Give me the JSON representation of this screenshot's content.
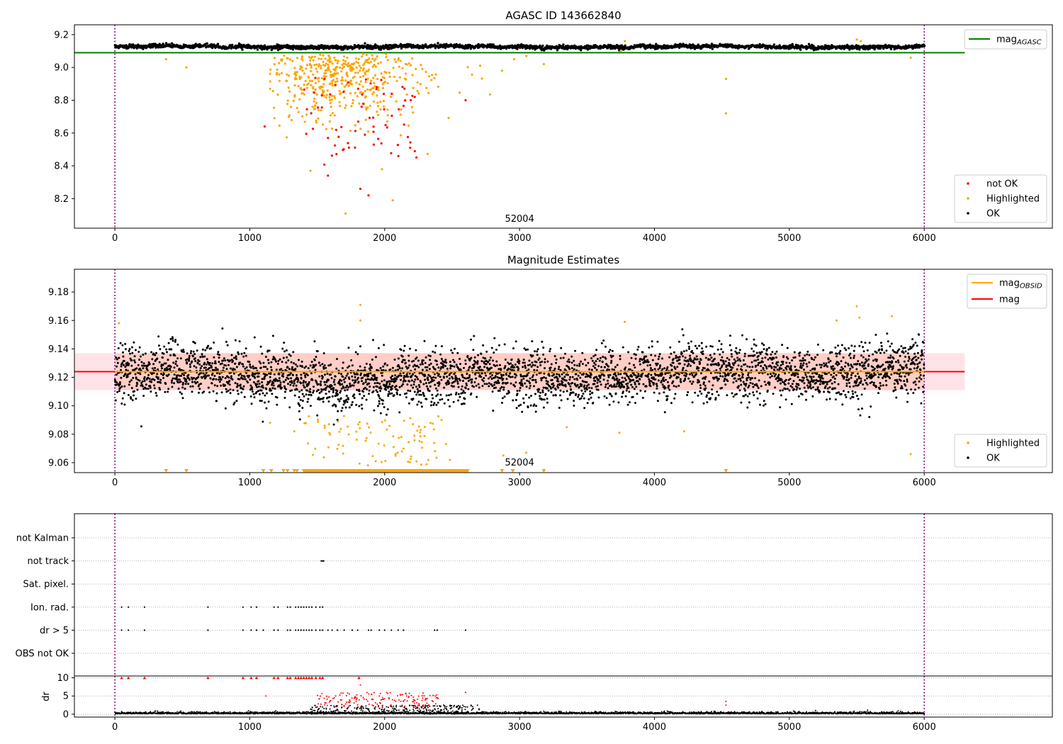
{
  "figure": {
    "width": 1500,
    "height": 1050
  },
  "colors": {
    "ok": "#000000",
    "highlighted": "#ffa500",
    "not_ok": "#ff0000",
    "mag_agasc": "#008000",
    "mag": "#ff0000",
    "mag_obsid": "#ffa500",
    "band_red": "#ffc0cb",
    "band_orange": "#ffa07a",
    "obsid_line": "#800080",
    "grid": "#b0b0b0"
  },
  "chart_data": [
    {
      "type": "scatter",
      "title": "AGASC ID 143662840",
      "xlim": [
        -300,
        6950
      ],
      "ylim": [
        8.02,
        9.26
      ],
      "xticks": [
        0,
        1000,
        2000,
        3000,
        4000,
        5000,
        6000
      ],
      "yticks": [
        8.2,
        8.4,
        8.6,
        8.8,
        9.0,
        9.2
      ],
      "ytick_labels": [
        "8.2",
        "8.4",
        "8.6",
        "8.8",
        "9.0",
        "9.2"
      ],
      "obsid_lines": [
        0,
        6000
      ],
      "obsid_label": {
        "text": "52004",
        "x": 3000
      },
      "mag_agasc": {
        "value": 9.09,
        "xrange": [
          -300,
          6300
        ]
      },
      "series": [
        {
          "name": "not OK",
          "color": "#ff0000"
        },
        {
          "name": "Highlighted",
          "color": "#ffa500"
        },
        {
          "name": "OK",
          "color": "#000000"
        }
      ],
      "ok_trend": {
        "base": 9.126,
        "spread": 0.008
      },
      "legend_top": {
        "label_main": "mag",
        "label_sub": "AGASC",
        "placement": "top-right"
      },
      "legend_bottom": {
        "labels": [
          "not OK",
          "Highlighted",
          "OK"
        ],
        "placement": "lower-right"
      }
    },
    {
      "type": "scatter",
      "title": "Magnitude Estimates",
      "xlim": [
        -300,
        6950
      ],
      "ylim": [
        9.053,
        9.196
      ],
      "xticks": [
        0,
        1000,
        2000,
        3000,
        4000,
        5000,
        6000
      ],
      "yticks": [
        9.06,
        9.08,
        9.1,
        9.12,
        9.14,
        9.16,
        9.18
      ],
      "ytick_labels": [
        "9.06",
        "9.08",
        "9.10",
        "9.12",
        "9.14",
        "9.16",
        "9.18"
      ],
      "obsid_lines": [
        0,
        6000
      ],
      "obsid_label": {
        "text": "52004",
        "x": 3000
      },
      "mag": {
        "value": 9.124,
        "band": [
          9.111,
          9.137
        ],
        "xrange": [
          -300,
          6300
        ]
      },
      "mag_obsid": {
        "value": 9.124,
        "band": [
          9.111,
          9.137
        ],
        "xrange": [
          0,
          6000
        ]
      },
      "clipped_marker_y": 9.054,
      "legend_top": {
        "mag_obsid_main": "mag",
        "mag_obsid_sub": "OBSID",
        "mag_label": "mag",
        "placement": "top-right"
      },
      "legend_bottom": {
        "labels": [
          "Highlighted",
          "OK"
        ],
        "placement": "lower-right"
      }
    },
    {
      "type": "scatter",
      "title": "",
      "xlim": [
        -300,
        6950
      ],
      "categories": [
        "not Kalman",
        "not track",
        "Sat. pixel.",
        "Ion. rad.",
        "dr > 5",
        "OBS not OK"
      ],
      "flag_samples": {
        "not track": [
          1530,
          1540,
          1548
        ],
        "Ion. rad.": [
          50,
          100,
          220,
          690,
          950,
          1010,
          1050,
          1180,
          1210,
          1280,
          1300,
          1340,
          1360,
          1380,
          1400,
          1420,
          1440,
          1460,
          1490,
          1520,
          1540
        ],
        "dr > 5": [
          50,
          100,
          220,
          690,
          950,
          1010,
          1050,
          1100,
          1180,
          1210,
          1280,
          1300,
          1340,
          1360,
          1380,
          1400,
          1420,
          1440,
          1460,
          1490,
          1520,
          1540,
          1580,
          1610,
          1650,
          1700,
          1760,
          1800,
          1880,
          1900,
          1960,
          2000,
          2050,
          2100,
          2140,
          2370,
          2390,
          2600
        ]
      },
      "obsid_lines": [
        0,
        6000
      ]
    },
    {
      "type": "scatter",
      "title": "",
      "ylabel": "dr",
      "xlim": [
        -300,
        6950
      ],
      "ylim": [
        -0.8,
        10.5
      ],
      "xticks": [
        0,
        1000,
        2000,
        3000,
        4000,
        5000,
        6000
      ],
      "yticks": [
        0,
        5,
        10
      ],
      "ytick_labels": [
        "0",
        "5",
        "10"
      ],
      "dr_clip": 10,
      "clip_samples": [
        50,
        100,
        220,
        690,
        950,
        1010,
        1050,
        1180,
        1210,
        1280,
        1300,
        1340,
        1360,
        1380,
        1400,
        1420,
        1440,
        1460,
        1490,
        1520,
        1540,
        1810
      ],
      "obsid_lines": [
        0,
        6000
      ]
    }
  ]
}
